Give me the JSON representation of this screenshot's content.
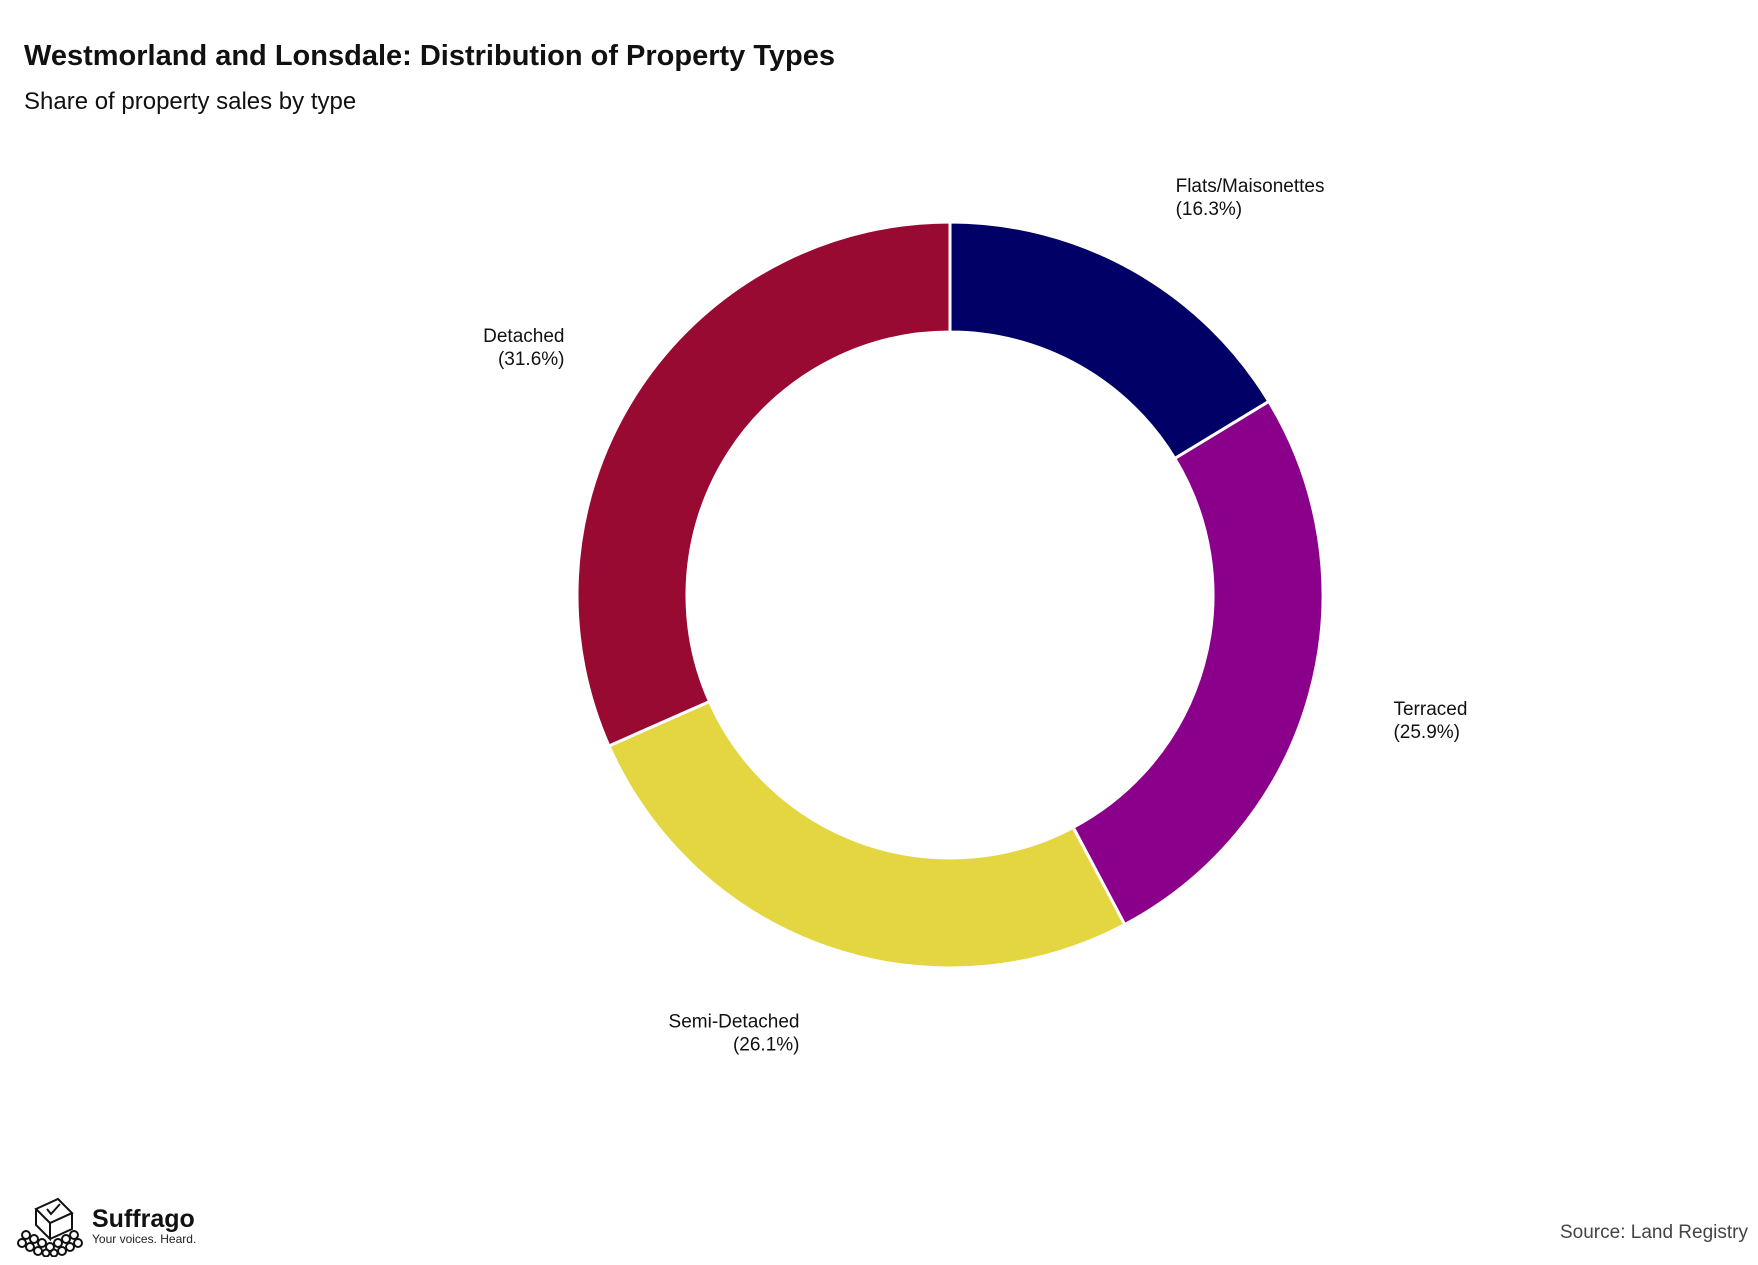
{
  "title": "Westmorland and Lonsdale: Distribution of Property Types",
  "subtitle": "Share of property sales by type",
  "source": "Source: Land Registry",
  "brand": {
    "name": "Suffrago",
    "tagline": "Your voices. Heard."
  },
  "chart_data": {
    "type": "pie",
    "variant": "donut",
    "title": "Westmorland and Lonsdale: Distribution of Property Types",
    "subtitle": "Share of property sales by type",
    "slices": [
      {
        "label": "Flats/Maisonettes",
        "value": 16.3,
        "display": "(16.3%)",
        "color": "#000066"
      },
      {
        "label": "Terraced",
        "value": 25.9,
        "display": "(25.9%)",
        "color": "#8B008B"
      },
      {
        "label": "Semi-Detached",
        "value": 26.1,
        "display": "(26.1%)",
        "color": "#E3D641"
      },
      {
        "label": "Detached",
        "value": 31.6,
        "display": "(31.6%)",
        "color": "#990A33"
      }
    ],
    "start_angle": "12 o'clock",
    "direction": "clockwise",
    "legend": "none"
  }
}
